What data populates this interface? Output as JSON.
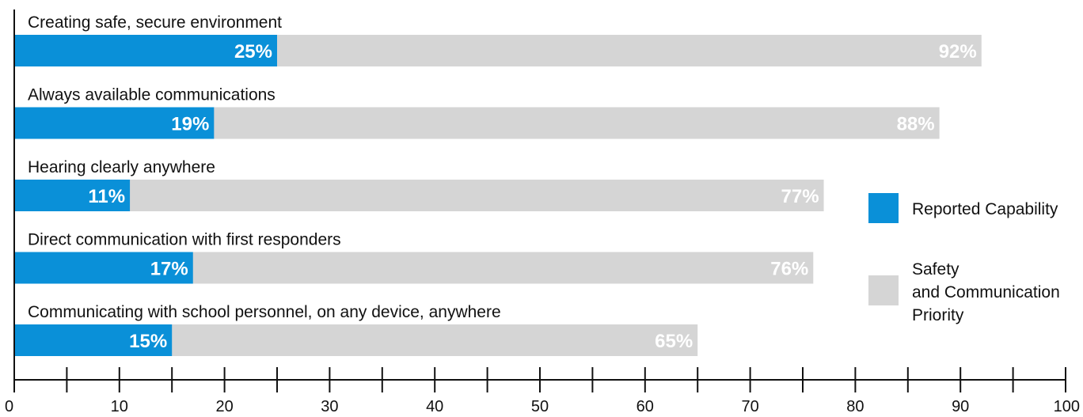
{
  "chart_data": {
    "type": "bar",
    "orientation": "horizontal",
    "layout": "overlapping",
    "categories": [
      "Creating safe, secure environment",
      "Always available communications",
      "Hearing clearly anywhere",
      "Direct communication with first responders",
      "Communicating with school personnel, on any device, anywhere"
    ],
    "series": [
      {
        "name": "Reported Capability",
        "color": "#0a90d8",
        "values": [
          25,
          19,
          11,
          17,
          15
        ],
        "labels": [
          "25%",
          "19%",
          "11%",
          "17%",
          "15%"
        ]
      },
      {
        "name": "Safety and Communication Priority",
        "legend_lines": [
          "Safety",
          "and Communication",
          "Priority"
        ],
        "color": "#d5d5d5",
        "values": [
          92,
          88,
          77,
          76,
          65
        ],
        "labels": [
          "92%",
          "88%",
          "77%",
          "76%",
          "65%"
        ]
      }
    ],
    "xlim": [
      0,
      100
    ],
    "xticks": [
      0,
      10,
      20,
      30,
      40,
      50,
      60,
      70,
      80,
      90,
      100
    ],
    "xticks_minor": [
      5,
      15,
      25,
      35,
      45,
      55,
      65,
      75,
      85,
      95
    ],
    "title": "",
    "xlabel": "",
    "ylabel": "",
    "grid": false,
    "legend_position": "right"
  }
}
